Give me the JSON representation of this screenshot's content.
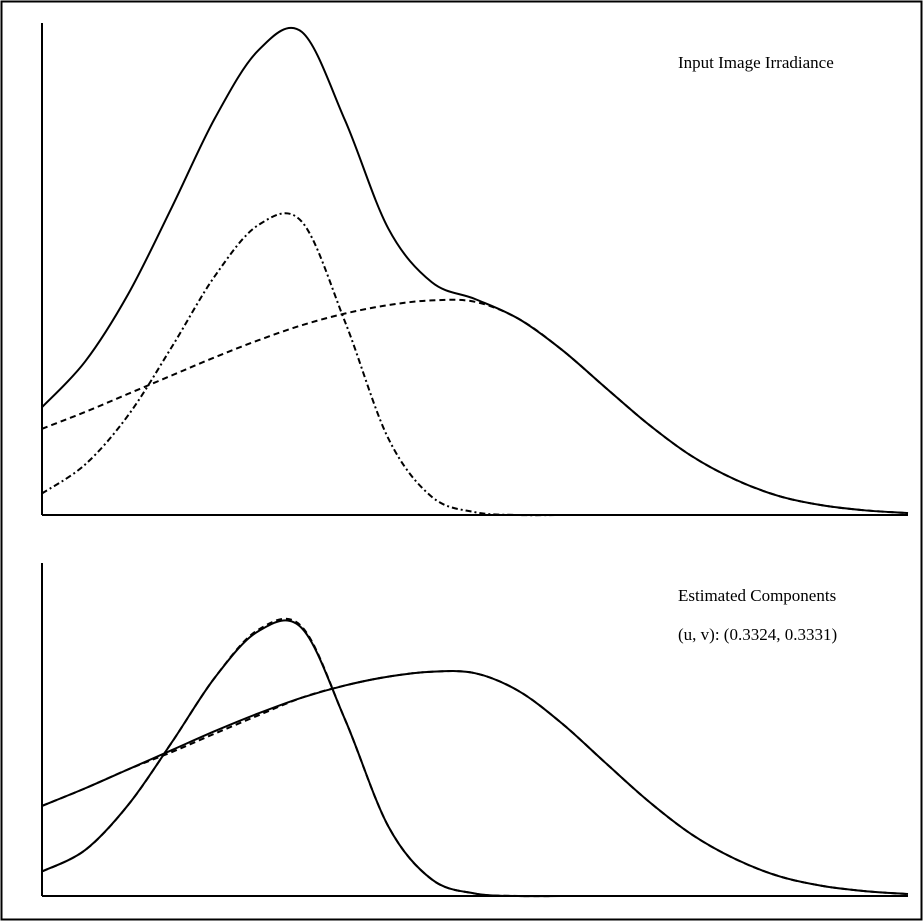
{
  "chart_data": [
    {
      "type": "line",
      "annotations": [
        "Input Image Irradiance"
      ],
      "x": [
        0,
        5,
        10,
        15,
        20,
        25,
        30,
        35,
        40,
        45,
        50,
        55,
        60,
        65,
        70,
        75,
        80,
        85,
        90,
        95,
        100
      ],
      "xlim": [
        0,
        100
      ],
      "ylim": [
        0,
        105
      ],
      "series": [
        {
          "color": "#000000",
          "style": "solid",
          "values": [
            23.0,
            32.8,
            47.3,
            65.7,
            84.8,
            99.2,
            103.1,
            84.2,
            61.1,
            49.7,
            46.1,
            41.9,
            35.3,
            27.3,
            19.4,
            12.6,
            7.6,
            4.1,
            2.1,
            1.0,
            0.4
          ]
        },
        {
          "color": "#000000",
          "style": "dashdot",
          "values": [
            4.6,
            10.8,
            21.4,
            35.9,
            51.1,
            61.9,
            62.6,
            41.2,
            16.3,
            3.9,
            0.6,
            0,
            0,
            0,
            0,
            0,
            0,
            0,
            0,
            0,
            0
          ]
        },
        {
          "color": "#000000",
          "style": "dashed",
          "values": [
            18.4,
            22.0,
            25.9,
            29.8,
            33.7,
            37.3,
            40.5,
            43.0,
            44.8,
            45.8,
            45.5,
            41.9,
            35.3,
            27.3,
            19.4,
            12.6,
            7.6,
            4.1,
            2.1,
            1.0,
            0.4
          ]
        }
      ]
    },
    {
      "type": "line",
      "annotations": [
        "Estimated Components",
        "(u, v):  (0.3324, 0.3331)"
      ],
      "x": [
        0,
        5,
        10,
        15,
        20,
        25,
        30,
        35,
        40,
        45,
        50,
        55,
        60,
        65,
        70,
        75,
        80,
        85,
        90,
        95,
        100
      ],
      "xlim": [
        0,
        100
      ],
      "ylim": [
        0,
        68
      ],
      "series": [
        {
          "color": "#000000",
          "style": "solid",
          "values": [
            5.0,
            9.4,
            18.7,
            31.4,
            44.7,
            54.1,
            54.7,
            36.0,
            14.2,
            3.4,
            0.5,
            0,
            0,
            0,
            0,
            0,
            0,
            0,
            0,
            0,
            0
          ]
        },
        {
          "color": "#000000",
          "style": "solid",
          "values": [
            18.4,
            22.0,
            25.9,
            29.8,
            33.7,
            37.3,
            40.5,
            43.0,
            44.8,
            45.8,
            45.5,
            41.9,
            35.3,
            27.3,
            19.4,
            12.6,
            7.6,
            4.1,
            2.1,
            1.0,
            0.4
          ]
        },
        {
          "color": "#000000",
          "style": "dashed",
          "values": [
            5.0,
            9.4,
            18.7,
            31.4,
            44.7,
            54.4,
            55.0,
            36.0,
            14.2,
            3.4,
            0.5,
            0,
            0,
            0,
            0,
            0,
            0,
            0,
            0,
            0,
            0
          ]
        },
        {
          "color": "#000000",
          "style": "dashed",
          "values": [
            18.4,
            22.0,
            25.9,
            29.4,
            33.2,
            36.9,
            40.5,
            43.0,
            44.8,
            45.8,
            45.5,
            41.9,
            35.3,
            27.3,
            19.4,
            12.6,
            7.6,
            4.1,
            2.1,
            1.0,
            0.4
          ]
        }
      ]
    }
  ]
}
